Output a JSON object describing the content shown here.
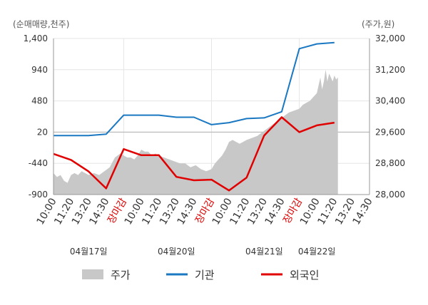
{
  "chart_data": {
    "type": "line",
    "left_axis_unit": "(순매매량,천주)",
    "right_axis_unit": "(주가,원)",
    "y_left": {
      "min": -900,
      "max": 1400,
      "ticks": [
        "1,400",
        "940",
        "480",
        "20",
        "-440",
        "-900"
      ],
      "tick_values": [
        1400,
        940,
        480,
        20,
        -440,
        -900
      ]
    },
    "y_right": {
      "min": 28000,
      "max": 32000,
      "ticks": [
        "32,000",
        "31,200",
        "30,400",
        "29,600",
        "28,800",
        "28,000"
      ],
      "tick_values": [
        32000,
        31200,
        30400,
        29600,
        28800,
        28000
      ]
    },
    "x_ticks": [
      "10:00",
      "11:20",
      "13:20",
      "14:30",
      "장마감",
      "10:00",
      "11:20",
      "13:20",
      "14:30",
      "장마감",
      "10:00",
      "11:20",
      "13:20",
      "14:30",
      "장마감",
      "10:00",
      "11:20",
      "13:20",
      "14:30"
    ],
    "x_tick_close_label": "장마감",
    "dates": [
      "04월17일",
      "04월20일",
      "04월21일",
      "04월22일"
    ],
    "grid": true,
    "legend_position": "bottom",
    "series": [
      {
        "name": "주가",
        "kind": "area",
        "axis": "right",
        "color": "#c8c8c8",
        "x": [
          0,
          0.2,
          0.4,
          0.6,
          0.8,
          1.0,
          1.2,
          1.4,
          1.6,
          1.8,
          2.0,
          2.3,
          2.6,
          2.9,
          3.2,
          3.5,
          3.8,
          4.0,
          4.2,
          4.4,
          4.6,
          4.8,
          5.0,
          5.2,
          5.4,
          5.6,
          5.8,
          6.0,
          6.3,
          6.6,
          6.9,
          7.2,
          7.5,
          7.8,
          8.1,
          8.4,
          8.7,
          9.0,
          9.2,
          9.4,
          9.6,
          9.8,
          10.0,
          10.2,
          10.4,
          10.6,
          10.8,
          11.0,
          11.3,
          11.6,
          11.9,
          12.2,
          12.5,
          12.8,
          13.1,
          13.4,
          13.7,
          14.0,
          14.2,
          14.4,
          14.6,
          14.8,
          15.0,
          15.1,
          15.2,
          15.3,
          15.4,
          15.5,
          15.6,
          15.7,
          15.8,
          15.9,
          16.0,
          16.1,
          16.2
        ],
        "values": [
          28550,
          28450,
          28500,
          28350,
          28300,
          28500,
          28550,
          28500,
          28600,
          28550,
          28500,
          28550,
          28500,
          28600,
          28700,
          28950,
          29050,
          29000,
          28950,
          28950,
          28900,
          29000,
          29150,
          29100,
          29100,
          29000,
          29050,
          29000,
          28950,
          28900,
          28850,
          28800,
          28800,
          28700,
          28750,
          28650,
          28600,
          28650,
          28800,
          28900,
          29000,
          29150,
          29350,
          29400,
          29350,
          29300,
          29350,
          29400,
          29450,
          29500,
          29600,
          29700,
          29800,
          29900,
          30000,
          30100,
          30150,
          30200,
          30300,
          30350,
          30400,
          30500,
          30600,
          30800,
          31000,
          30700,
          30900,
          31200,
          30900,
          31100,
          31000,
          30900,
          31050,
          30950,
          31000
        ]
      },
      {
        "name": "기관",
        "kind": "line",
        "axis": "left",
        "color": "#1a78c2",
        "x": [
          0,
          1,
          2,
          3,
          4,
          5,
          6,
          7,
          8,
          9,
          10,
          11,
          12,
          13,
          14,
          15,
          16
        ],
        "values": [
          -30,
          -30,
          -30,
          -10,
          270,
          270,
          270,
          240,
          240,
          130,
          160,
          220,
          230,
          320,
          1250,
          1320,
          1340
        ]
      },
      {
        "name": "외국인",
        "kind": "line",
        "axis": "left",
        "color": "#e00000",
        "x": [
          0,
          1,
          2,
          3,
          4,
          5,
          6,
          7,
          8,
          9,
          10,
          11,
          12,
          13,
          14,
          15,
          16
        ],
        "values": [
          -300,
          -390,
          -560,
          -810,
          -230,
          -320,
          -320,
          -640,
          -690,
          -680,
          -840,
          -650,
          -30,
          240,
          20,
          120,
          160
        ]
      }
    ]
  }
}
